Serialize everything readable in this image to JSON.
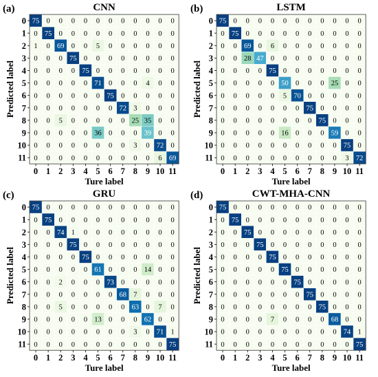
{
  "ylabel": "Predicted label",
  "xlabel": "Ture label",
  "colors": {
    "low": "#f7fcf0",
    "high": "#084081",
    "grid": "#ffffff",
    "frame": "#333333"
  },
  "chart_data": [
    {
      "type": "heatmap",
      "panel_label": "(a)",
      "title": "CNN",
      "xlabel": "Ture label",
      "ylabel": "Predicted label",
      "x_ticks": [
        "0",
        "1",
        "2",
        "3",
        "4",
        "5",
        "6",
        "7",
        "8",
        "9",
        "10",
        "11"
      ],
      "y_ticks": [
        "0",
        "1",
        "2",
        "3",
        "4",
        "5",
        "6",
        "7",
        "8",
        "9",
        "10",
        "11"
      ],
      "vmax": 75,
      "matrix": [
        [
          75,
          0,
          0,
          0,
          0,
          0,
          0,
          0,
          0,
          0,
          0,
          0
        ],
        [
          0,
          75,
          0,
          0,
          0,
          0,
          0,
          0,
          0,
          0,
          0,
          0
        ],
        [
          1,
          0,
          69,
          0,
          0,
          5,
          0,
          0,
          0,
          0,
          0,
          0
        ],
        [
          0,
          0,
          0,
          75,
          0,
          0,
          0,
          0,
          0,
          0,
          0,
          0
        ],
        [
          0,
          0,
          0,
          0,
          75,
          0,
          0,
          0,
          0,
          0,
          0,
          0
        ],
        [
          0,
          0,
          0,
          0,
          0,
          71,
          0,
          0,
          0,
          4,
          0,
          0
        ],
        [
          0,
          0,
          0,
          0,
          0,
          0,
          75,
          0,
          0,
          0,
          0,
          0
        ],
        [
          0,
          0,
          0,
          0,
          0,
          0,
          0,
          72,
          3,
          0,
          0,
          0
        ],
        [
          0,
          0,
          5,
          0,
          0,
          0,
          0,
          0,
          25,
          35,
          0,
          0
        ],
        [
          0,
          0,
          0,
          0,
          0,
          36,
          0,
          0,
          0,
          39,
          0,
          0
        ],
        [
          0,
          0,
          0,
          0,
          0,
          0,
          0,
          0,
          3,
          0,
          72,
          0
        ],
        [
          0,
          0,
          0,
          0,
          0,
          0,
          0,
          0,
          0,
          0,
          6,
          69
        ]
      ]
    },
    {
      "type": "heatmap",
      "panel_label": "(b)",
      "title": "LSTM",
      "xlabel": "Ture label",
      "ylabel": "Predicted label",
      "x_ticks": [
        "0",
        "1",
        "2",
        "3",
        "4",
        "5",
        "6",
        "7",
        "8",
        "9",
        "10",
        "11"
      ],
      "y_ticks": [
        "0",
        "1",
        "2",
        "3",
        "4",
        "5",
        "6",
        "7",
        "8",
        "9",
        "10",
        "11"
      ],
      "vmax": 75,
      "matrix": [
        [
          75,
          0,
          0,
          0,
          0,
          0,
          0,
          0,
          0,
          0,
          0,
          0
        ],
        [
          0,
          75,
          0,
          0,
          0,
          0,
          0,
          0,
          0,
          0,
          0,
          0
        ],
        [
          0,
          0,
          69,
          0,
          6,
          0,
          0,
          0,
          0,
          0,
          0,
          0
        ],
        [
          0,
          0,
          28,
          47,
          0,
          0,
          0,
          0,
          0,
          0,
          0,
          0
        ],
        [
          0,
          0,
          0,
          0,
          75,
          0,
          0,
          0,
          0,
          0,
          0,
          0
        ],
        [
          0,
          0,
          0,
          0,
          0,
          50,
          0,
          0,
          0,
          25,
          0,
          0
        ],
        [
          0,
          0,
          0,
          0,
          0,
          5,
          70,
          0,
          0,
          0,
          0,
          0
        ],
        [
          0,
          0,
          0,
          0,
          0,
          0,
          0,
          75,
          0,
          0,
          0,
          0
        ],
        [
          0,
          0,
          0,
          0,
          0,
          0,
          0,
          0,
          75,
          0,
          0,
          0
        ],
        [
          0,
          0,
          0,
          0,
          0,
          16,
          0,
          0,
          0,
          59,
          0,
          0
        ],
        [
          0,
          0,
          0,
          0,
          0,
          0,
          0,
          0,
          0,
          0,
          75,
          0
        ],
        [
          0,
          0,
          0,
          0,
          0,
          0,
          0,
          0,
          0,
          0,
          3,
          72
        ]
      ]
    },
    {
      "type": "heatmap",
      "panel_label": "(c)",
      "title": "GRU",
      "xlabel": "Ture label",
      "ylabel": "Predicted label",
      "x_ticks": [
        "0",
        "1",
        "2",
        "3",
        "4",
        "5",
        "6",
        "7",
        "8",
        "9",
        "10",
        "11"
      ],
      "y_ticks": [
        "0",
        "1",
        "2",
        "3",
        "4",
        "5",
        "6",
        "7",
        "8",
        "9",
        "10",
        "11"
      ],
      "vmax": 75,
      "matrix": [
        [
          75,
          0,
          0,
          0,
          0,
          0,
          0,
          0,
          0,
          0,
          0,
          0
        ],
        [
          0,
          75,
          0,
          0,
          0,
          0,
          0,
          0,
          0,
          0,
          0,
          0
        ],
        [
          0,
          0,
          74,
          1,
          0,
          0,
          0,
          0,
          0,
          0,
          0,
          0
        ],
        [
          0,
          0,
          0,
          75,
          0,
          0,
          0,
          0,
          0,
          0,
          0,
          0
        ],
        [
          0,
          0,
          0,
          0,
          75,
          0,
          0,
          0,
          0,
          0,
          0,
          0
        ],
        [
          0,
          0,
          0,
          0,
          0,
          61,
          0,
          0,
          0,
          14,
          0,
          0
        ],
        [
          0,
          0,
          2,
          0,
          0,
          0,
          73,
          0,
          0,
          0,
          0,
          0
        ],
        [
          0,
          0,
          0,
          0,
          0,
          0,
          0,
          68,
          7,
          0,
          0,
          0
        ],
        [
          0,
          0,
          5,
          0,
          0,
          0,
          0,
          0,
          63,
          0,
          7,
          0
        ],
        [
          0,
          0,
          0,
          0,
          0,
          13,
          0,
          0,
          0,
          62,
          0,
          0
        ],
        [
          0,
          0,
          0,
          0,
          0,
          0,
          0,
          0,
          3,
          0,
          71,
          1
        ],
        [
          0,
          0,
          0,
          0,
          0,
          0,
          0,
          0,
          0,
          0,
          0,
          75
        ]
      ]
    },
    {
      "type": "heatmap",
      "panel_label": "(d)",
      "title": "CWT-MHA-CNN",
      "xlabel": "Ture label",
      "ylabel": "Predicted label",
      "x_ticks": [
        "0",
        "1",
        "2",
        "3",
        "4",
        "5",
        "6",
        "7",
        "8",
        "9",
        "10",
        "11"
      ],
      "y_ticks": [
        "0",
        "1",
        "2",
        "3",
        "4",
        "5",
        "6",
        "7",
        "8",
        "9",
        "10",
        "11"
      ],
      "vmax": 75,
      "matrix": [
        [
          75,
          0,
          0,
          0,
          0,
          0,
          0,
          0,
          0,
          0,
          0,
          0
        ],
        [
          0,
          75,
          0,
          0,
          0,
          0,
          0,
          0,
          0,
          0,
          0,
          0
        ],
        [
          0,
          0,
          75,
          0,
          0,
          0,
          0,
          0,
          0,
          0,
          0,
          0
        ],
        [
          0,
          0,
          0,
          75,
          0,
          0,
          0,
          0,
          0,
          0,
          0,
          0
        ],
        [
          0,
          0,
          0,
          0,
          75,
          0,
          0,
          0,
          0,
          0,
          0,
          0
        ],
        [
          0,
          0,
          0,
          0,
          0,
          75,
          0,
          0,
          0,
          0,
          0,
          0
        ],
        [
          0,
          0,
          0,
          0,
          0,
          0,
          75,
          0,
          0,
          0,
          0,
          0
        ],
        [
          0,
          0,
          0,
          0,
          0,
          0,
          0,
          75,
          0,
          0,
          0,
          0
        ],
        [
          0,
          0,
          0,
          0,
          0,
          0,
          0,
          0,
          75,
          0,
          0,
          0
        ],
        [
          0,
          0,
          0,
          0,
          7,
          0,
          0,
          0,
          0,
          68,
          0,
          0
        ],
        [
          0,
          0,
          0,
          0,
          0,
          0,
          0,
          0,
          0,
          0,
          74,
          1
        ],
        [
          0,
          0,
          0,
          0,
          0,
          0,
          0,
          0,
          0,
          0,
          0,
          75
        ]
      ]
    }
  ]
}
